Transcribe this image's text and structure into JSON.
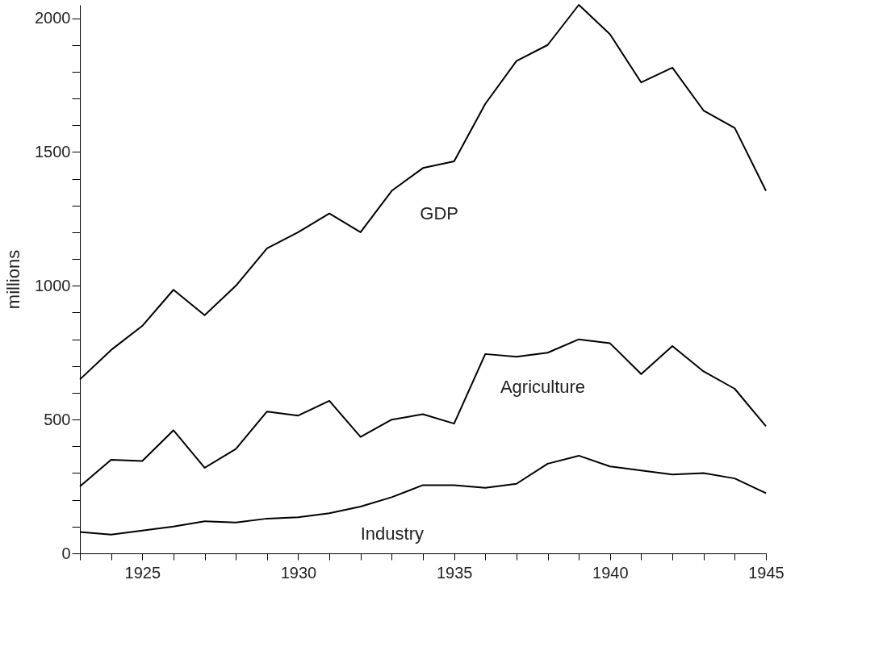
{
  "chart_data": {
    "type": "line",
    "ylabel": "millions",
    "x": [
      1923,
      1924,
      1925,
      1926,
      1927,
      1928,
      1929,
      1930,
      1931,
      1932,
      1933,
      1934,
      1935,
      1936,
      1937,
      1938,
      1939,
      1940,
      1941,
      1942,
      1943,
      1944,
      1945
    ],
    "series": [
      {
        "name": "GDP",
        "color": "#000000",
        "values": [
          650,
          760,
          850,
          985,
          890,
          1000,
          1140,
          1200,
          1270,
          1200,
          1355,
          1440,
          1465,
          1680,
          1840,
          1900,
          2050,
          1940,
          1760,
          1815,
          1655,
          1590,
          1355
        ]
      },
      {
        "name": "Agriculture",
        "color": "#000000",
        "values": [
          250,
          350,
          345,
          460,
          320,
          390,
          530,
          515,
          570,
          435,
          500,
          520,
          485,
          745,
          735,
          750,
          800,
          785,
          670,
          775,
          680,
          615,
          475
        ]
      },
      {
        "name": "Industry",
        "color": "#000000",
        "values": [
          80,
          70,
          85,
          100,
          120,
          115,
          130,
          135,
          150,
          175,
          210,
          255,
          255,
          245,
          260,
          335,
          365,
          325,
          310,
          295,
          300,
          280,
          225
        ]
      }
    ],
    "xlim": [
      1923,
      1945
    ],
    "xticks": [
      {
        "value": 1923,
        "label": null
      },
      {
        "value": 1924,
        "label": null
      },
      1925,
      {
        "value": 1926,
        "label": null
      },
      {
        "value": 1927,
        "label": null
      },
      {
        "value": 1928,
        "label": null
      },
      {
        "value": 1929,
        "label": null
      },
      1930,
      {
        "value": 1931,
        "label": null
      },
      {
        "value": 1932,
        "label": null
      },
      {
        "value": 1933,
        "label": null
      },
      {
        "value": 1934,
        "label": null
      },
      1935,
      {
        "value": 1936,
        "label": null
      },
      {
        "value": 1937,
        "label": null
      },
      {
        "value": 1938,
        "label": null
      },
      {
        "value": 1939,
        "label": null
      },
      1940,
      {
        "value": 1941,
        "label": null
      },
      {
        "value": 1942,
        "label": null
      },
      {
        "value": 1943,
        "label": null
      },
      {
        "value": 1944,
        "label": null
      },
      1945
    ],
    "ylim": [
      0,
      2050
    ],
    "yticks": [
      0,
      {
        "value": 100,
        "label": null
      },
      {
        "value": 200,
        "label": null
      },
      {
        "value": 300,
        "label": null
      },
      {
        "value": 400,
        "label": null
      },
      500,
      {
        "value": 600,
        "label": null
      },
      {
        "value": 700,
        "label": null
      },
      {
        "value": 800,
        "label": null
      },
      {
        "value": 900,
        "label": null
      },
      1000,
      {
        "value": 1100,
        "label": null
      },
      {
        "value": 1200,
        "label": null
      },
      {
        "value": 1300,
        "label": null
      },
      {
        "value": 1400,
        "label": null
      },
      1500,
      {
        "value": 1600,
        "label": null
      },
      {
        "value": 1700,
        "label": null
      },
      {
        "value": 1800,
        "label": null
      },
      {
        "value": 1900,
        "label": null
      },
      2000
    ],
    "grid": false,
    "legend": false,
    "line_style": "solid",
    "marker": "none"
  }
}
